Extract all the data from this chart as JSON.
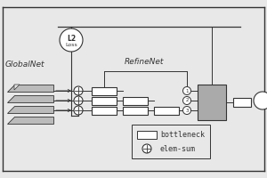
{
  "bg_color": "#e8e8e8",
  "line_color": "#333333",
  "box_fill": "#ffffff",
  "gray_fill": "#aaaaaa",
  "band_fill": "#bbbbbb",
  "globalnet_label": "GlobalNet",
  "refinenet_label": "RefineNet",
  "l2_top": "L2",
  "l2_bot": "Loss",
  "bottleneck_label": "bottleneck",
  "elemsum_label": "elem-sum",
  "font_size": 6.5,
  "legend_font": 6.0
}
